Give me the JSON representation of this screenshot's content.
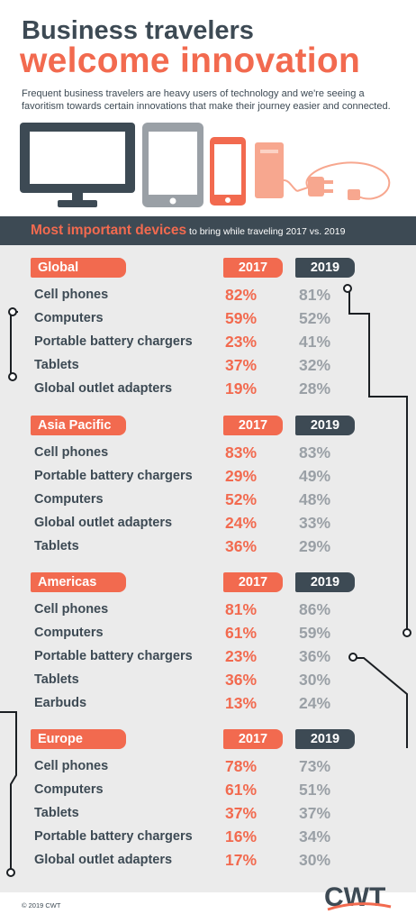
{
  "header": {
    "title_line1": "Business travelers",
    "title_line2": "welcome innovation",
    "intro": "Frequent business travelers are heavy users of technology and we're seeing a favoritism towards certain innovations that make their journey easier and connected."
  },
  "illustration": {
    "icons": [
      "monitor-icon",
      "tablet-icon",
      "phone-icon",
      "battery-charger-icon",
      "plug-adapter-icon"
    ]
  },
  "banner": {
    "highlight": "Most important devices",
    "rest_1": " to bring while traveling ",
    "years": "2017 vs. 2019"
  },
  "year_labels": {
    "y2017": "2017",
    "y2019": "2019"
  },
  "regions": [
    {
      "name": "Global",
      "rows": [
        {
          "item": "Cell phones",
          "v2017": "82%",
          "v2019": "81%"
        },
        {
          "item": "Computers",
          "v2017": "59%",
          "v2019": "52%"
        },
        {
          "item": "Portable battery chargers",
          "v2017": "23%",
          "v2019": "41%"
        },
        {
          "item": "Tablets",
          "v2017": "37%",
          "v2019": "32%"
        },
        {
          "item": "Global outlet adapters",
          "v2017": "19%",
          "v2019": "28%"
        }
      ]
    },
    {
      "name": "Asia Pacific",
      "rows": [
        {
          "item": "Cell phones",
          "v2017": "83%",
          "v2019": "83%"
        },
        {
          "item": "Portable battery chargers",
          "v2017": "29%",
          "v2019": "49%"
        },
        {
          "item": "Computers",
          "v2017": "52%",
          "v2019": "48%"
        },
        {
          "item": "Global outlet adapters",
          "v2017": "24%",
          "v2019": "33%"
        },
        {
          "item": "Tablets",
          "v2017": "36%",
          "v2019": "29%"
        }
      ]
    },
    {
      "name": "Americas",
      "rows": [
        {
          "item": "Cell phones",
          "v2017": "81%",
          "v2019": "86%"
        },
        {
          "item": "Computers",
          "v2017": "61%",
          "v2019": "59%"
        },
        {
          "item": "Portable battery chargers",
          "v2017": "23%",
          "v2019": "36%"
        },
        {
          "item": "Tablets",
          "v2017": "36%",
          "v2019": "30%"
        },
        {
          "item": "Earbuds",
          "v2017": "13%",
          "v2019": "24%"
        }
      ]
    },
    {
      "name": "Europe",
      "rows": [
        {
          "item": "Cell phones",
          "v2017": "78%",
          "v2019": "73%"
        },
        {
          "item": "Computers",
          "v2017": "61%",
          "v2019": "51%"
        },
        {
          "item": "Tablets",
          "v2017": "37%",
          "v2019": "37%"
        },
        {
          "item": "Portable battery chargers",
          "v2017": "16%",
          "v2019": "34%"
        },
        {
          "item": "Global outlet adapters",
          "v2017": "17%",
          "v2019": "30%"
        }
      ]
    }
  ],
  "footer": {
    "copyright": "© 2019 CWT",
    "logo_text": "CWT"
  },
  "colors": {
    "accent": "#f26a4f",
    "dark": "#3d4a54",
    "muted": "#9aa0a6",
    "panel": "#ebebeb"
  }
}
